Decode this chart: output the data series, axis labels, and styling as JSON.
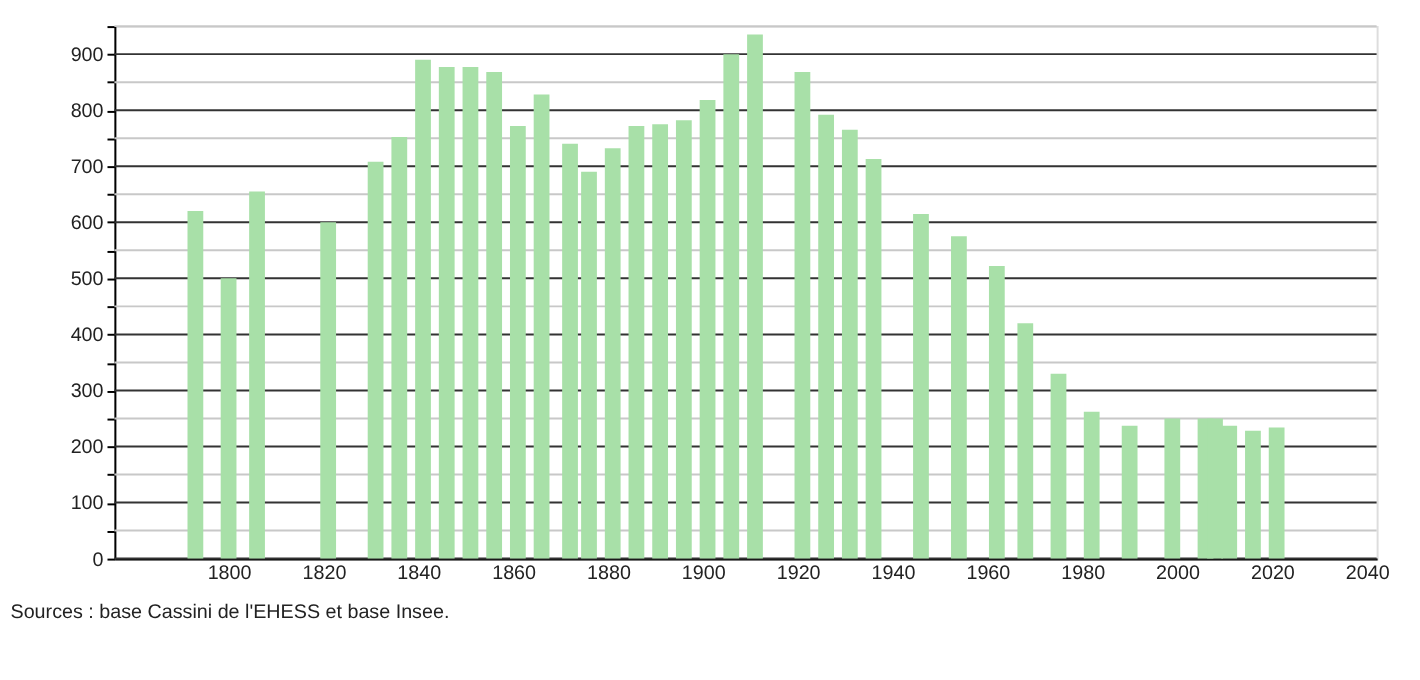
{
  "chart_data": {
    "type": "bar",
    "x": [
      1793,
      1800,
      1806,
      1821,
      1831,
      1836,
      1841,
      1846,
      1851,
      1856,
      1861,
      1866,
      1872,
      1876,
      1881,
      1886,
      1891,
      1896,
      1901,
      1906,
      1911,
      1921,
      1926,
      1931,
      1936,
      1946,
      1954,
      1962,
      1968,
      1975,
      1982,
      1990,
      1999,
      2006,
      2008,
      2011,
      2016,
      2021
    ],
    "values": [
      620,
      500,
      655,
      600,
      708,
      752,
      890,
      877,
      877,
      868,
      772,
      828,
      740,
      690,
      732,
      772,
      775,
      782,
      818,
      900,
      935,
      868,
      792,
      765,
      713,
      615,
      575,
      522,
      420,
      330,
      262,
      237,
      250,
      250,
      250,
      237,
      228,
      234
    ],
    "color": "#a8e0a8",
    "xlim": [
      1778,
      2040
    ],
    "xticks": [
      1800,
      1820,
      1840,
      1860,
      1880,
      1900,
      1920,
      1940,
      1960,
      1980,
      2000,
      2020,
      2040
    ],
    "ylim": [
      0,
      950
    ],
    "yticks": [
      0,
      {
        "value": 50,
        "label": null
      },
      100,
      {
        "value": 150,
        "label": null
      },
      200,
      {
        "value": 250,
        "label": null
      },
      300,
      {
        "value": 350,
        "label": null
      },
      400,
      {
        "value": 450,
        "label": null
      },
      500,
      {
        "value": 550,
        "label": null
      },
      600,
      {
        "value": 650,
        "label": null
      },
      700,
      {
        "value": 750,
        "label": null
      },
      800,
      {
        "value": 850,
        "label": null
      },
      900,
      {
        "value": 950,
        "label": null
      }
    ],
    "grid": "y",
    "annotations": [
      "Sources : base Cassini de l'EHESS et base Insee."
    ]
  }
}
